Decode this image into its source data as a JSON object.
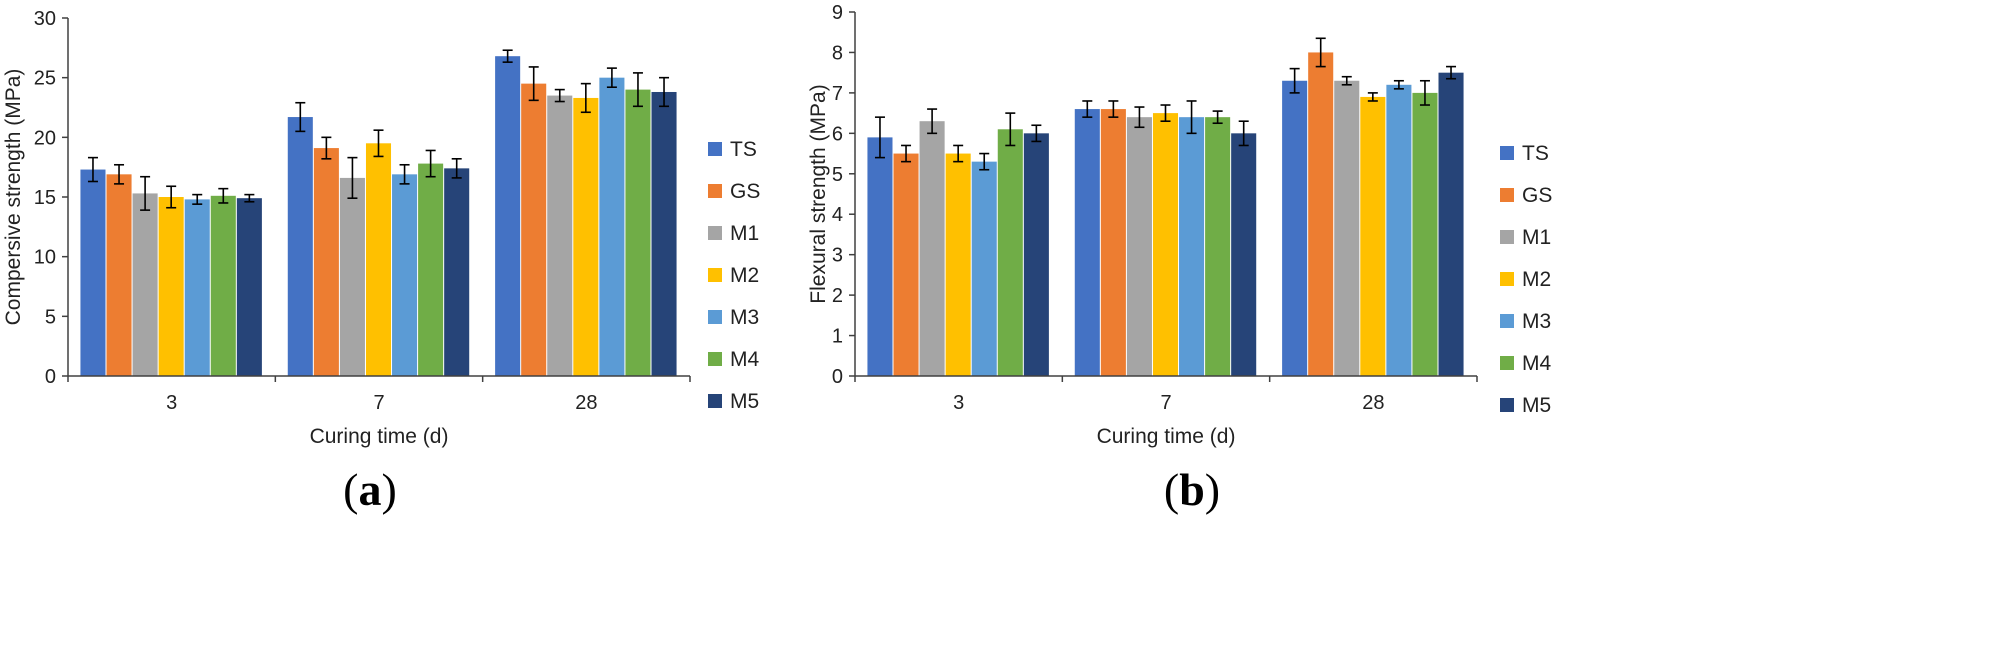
{
  "colors": {
    "TS": "#4472C4",
    "GS": "#ED7D31",
    "M1": "#A5A5A5",
    "M2": "#FFC000",
    "M3": "#5B9BD5",
    "M4": "#70AD47",
    "M5": "#264478"
  },
  "chart_data": [
    {
      "type": "bar",
      "panel_label": {
        "open": "(",
        "letter": "a",
        "close": ")"
      },
      "categories": [
        "3",
        "7",
        "28"
      ],
      "xlabel": "Curing time (d)",
      "ylabel": "Compersive strength (MPa)",
      "ylim": [
        0,
        30
      ],
      "yticks": [
        0,
        5,
        10,
        15,
        20,
        25,
        30
      ],
      "grid": false,
      "legend": "right",
      "series": [
        {
          "name": "TS",
          "values": [
            17.3,
            21.7,
            26.8
          ],
          "errors": [
            1.0,
            1.2,
            0.5
          ]
        },
        {
          "name": "GS",
          "values": [
            16.9,
            19.1,
            24.5
          ],
          "errors": [
            0.8,
            0.9,
            1.4
          ]
        },
        {
          "name": "M1",
          "values": [
            15.3,
            16.6,
            23.5
          ],
          "errors": [
            1.4,
            1.7,
            0.5
          ]
        },
        {
          "name": "M2",
          "values": [
            15.0,
            19.5,
            23.3
          ],
          "errors": [
            0.9,
            1.1,
            1.2
          ]
        },
        {
          "name": "M3",
          "values": [
            14.8,
            16.9,
            25.0
          ],
          "errors": [
            0.4,
            0.8,
            0.8
          ]
        },
        {
          "name": "M4",
          "values": [
            15.1,
            17.8,
            24.0
          ],
          "errors": [
            0.6,
            1.1,
            1.4
          ]
        },
        {
          "name": "M5",
          "values": [
            14.9,
            17.4,
            23.8
          ],
          "errors": [
            0.3,
            0.8,
            1.2
          ]
        }
      ]
    },
    {
      "type": "bar",
      "panel_label": {
        "open": "(",
        "letter": "b",
        "close": ")"
      },
      "categories": [
        "3",
        "7",
        "28"
      ],
      "xlabel": "Curing time (d)",
      "ylabel": "Flexural strength (MPa)",
      "ylim": [
        0,
        9
      ],
      "yticks": [
        0,
        1,
        2,
        3,
        4,
        5,
        6,
        7,
        8,
        9
      ],
      "grid": false,
      "legend": "right",
      "series": [
        {
          "name": "TS",
          "values": [
            5.9,
            6.6,
            7.3
          ],
          "errors": [
            0.5,
            0.2,
            0.3
          ]
        },
        {
          "name": "GS",
          "values": [
            5.5,
            6.6,
            8.0
          ],
          "errors": [
            0.2,
            0.2,
            0.35
          ]
        },
        {
          "name": "M1",
          "values": [
            6.3,
            6.4,
            7.3
          ],
          "errors": [
            0.3,
            0.25,
            0.1
          ]
        },
        {
          "name": "M2",
          "values": [
            5.5,
            6.5,
            6.9
          ],
          "errors": [
            0.2,
            0.2,
            0.1
          ]
        },
        {
          "name": "M3",
          "values": [
            5.3,
            6.4,
            7.2
          ],
          "errors": [
            0.2,
            0.4,
            0.1
          ]
        },
        {
          "name": "M4",
          "values": [
            6.1,
            6.4,
            7.0
          ],
          "errors": [
            0.4,
            0.15,
            0.3
          ]
        },
        {
          "name": "M5",
          "values": [
            6.0,
            6.0,
            7.5
          ],
          "errors": [
            0.2,
            0.3,
            0.15
          ]
        }
      ]
    }
  ]
}
